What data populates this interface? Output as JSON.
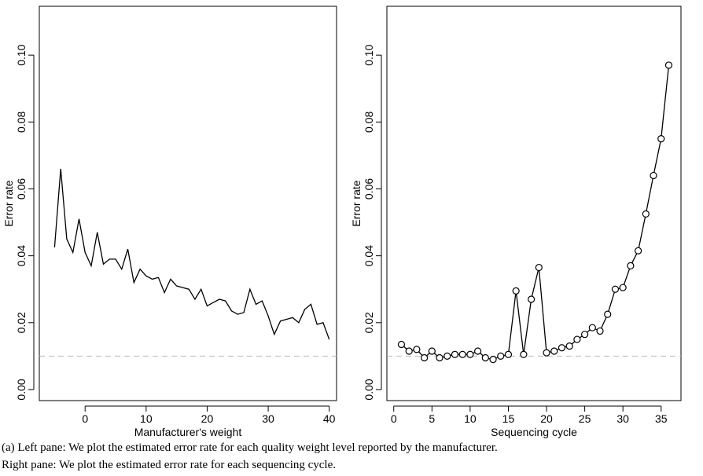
{
  "chart_data": [
    {
      "type": "line",
      "xlabel": "Manufacturer's weight",
      "ylabel": "Error rate",
      "x": [
        -5,
        -4,
        -3,
        -2,
        -1,
        0,
        1,
        2,
        3,
        4,
        5,
        6,
        7,
        8,
        9,
        10,
        11,
        12,
        13,
        14,
        15,
        16,
        17,
        18,
        19,
        20,
        21,
        22,
        23,
        24,
        25,
        26,
        27,
        28,
        29,
        30,
        31,
        32,
        33,
        34,
        35,
        36,
        37,
        38,
        39,
        40
      ],
      "values": [
        0.0425,
        0.066,
        0.045,
        0.041,
        0.051,
        0.041,
        0.037,
        0.047,
        0.0375,
        0.039,
        0.039,
        0.036,
        0.042,
        0.032,
        0.036,
        0.034,
        0.033,
        0.0335,
        0.029,
        0.033,
        0.031,
        0.0305,
        0.03,
        0.027,
        0.03,
        0.025,
        0.026,
        0.027,
        0.0265,
        0.0235,
        0.0225,
        0.023,
        0.03,
        0.0255,
        0.0265,
        0.022,
        0.0165,
        0.0205,
        0.021,
        0.0215,
        0.02,
        0.024,
        0.0255,
        0.0195,
        0.02,
        0.015
      ],
      "color": "#000000",
      "markers": false,
      "xlim": [
        -7.5,
        41.2
      ],
      "ylim": [
        -0.0033,
        0.1146
      ],
      "xticks": [
        0,
        10,
        20,
        30,
        40
      ],
      "yticks": [
        {
          "value": 0,
          "label": "0.00"
        },
        {
          "value": 0.02,
          "label": "0.02"
        },
        {
          "value": 0.04,
          "label": "0.04"
        },
        {
          "value": 0.06,
          "label": "0.06"
        },
        {
          "value": 0.08,
          "label": "0.08"
        },
        {
          "value": 0.1,
          "label": "0.10"
        }
      ],
      "hline": 0.01,
      "hline_color": "#bbbbbb"
    },
    {
      "type": "line",
      "xlabel": "Sequencing cycle",
      "ylabel": "Error rate",
      "x": [
        1,
        2,
        3,
        4,
        5,
        6,
        7,
        8,
        9,
        10,
        11,
        12,
        13,
        14,
        15,
        16,
        17,
        18,
        19,
        20,
        21,
        22,
        23,
        24,
        25,
        26,
        27,
        28,
        29,
        30,
        31,
        32,
        33,
        34,
        35,
        36
      ],
      "values": [
        0.0135,
        0.0115,
        0.012,
        0.0095,
        0.0115,
        0.0095,
        0.01,
        0.0105,
        0.0105,
        0.0105,
        0.0115,
        0.0095,
        0.009,
        0.01,
        0.0105,
        0.0295,
        0.0105,
        0.027,
        0.0365,
        0.011,
        0.0115,
        0.0125,
        0.013,
        0.015,
        0.0165,
        0.0185,
        0.0175,
        0.0225,
        0.03,
        0.0305,
        0.037,
        0.0415,
        0.0525,
        0.064,
        0.075,
        0.097
      ],
      "color": "#000000",
      "markers": true,
      "xlim": [
        -0.9,
        37.6
      ],
      "ylim": [
        -0.0033,
        0.1146
      ],
      "xticks": [
        0,
        5,
        10,
        15,
        20,
        25,
        30,
        35
      ],
      "yticks": [
        {
          "value": 0,
          "label": "0.00"
        },
        {
          "value": 0.02,
          "label": "0.02"
        },
        {
          "value": 0.04,
          "label": "0.04"
        },
        {
          "value": 0.06,
          "label": "0.06"
        },
        {
          "value": 0.08,
          "label": "0.08"
        },
        {
          "value": 0.1,
          "label": "0.10"
        }
      ],
      "hline": 0.01,
      "hline_color": "#bbbbbb"
    }
  ],
  "caption": [
    "(a) Left pane: We plot the estimated error rate for each quality weight level reported by the manufacturer.",
    "Right pane: We plot the estimated error rate for each sequencing cycle."
  ]
}
